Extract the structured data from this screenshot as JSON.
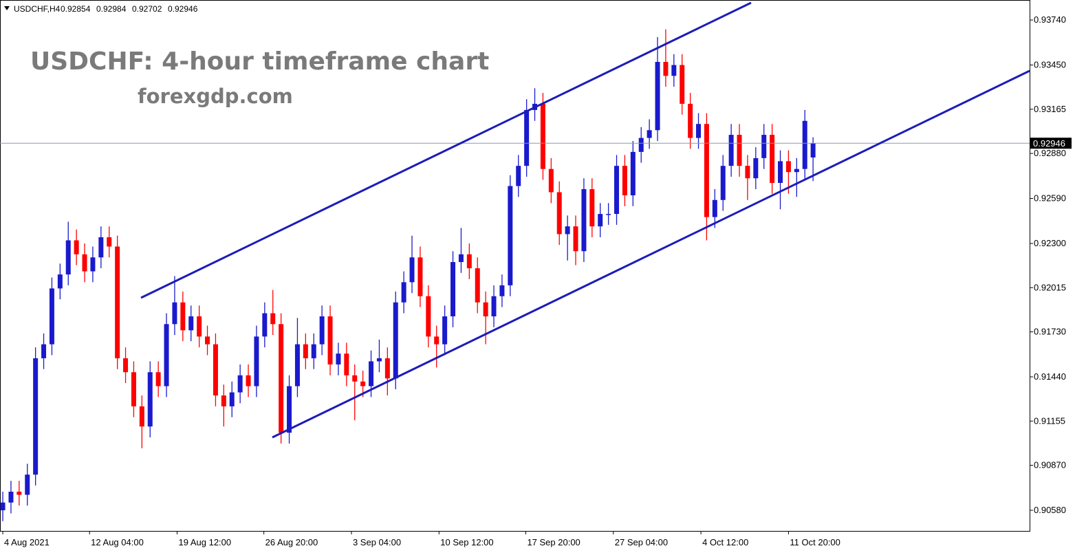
{
  "chart_data": {
    "type": "candlestick",
    "symbol": "USDCHF,H4",
    "title": "USDCHF: 4-hour timeframe chart",
    "subtitle": "forexgdp.com",
    "up_color": "#1a1acd",
    "down_color": "#ff0000",
    "open": [
      0.9058,
      0.9063,
      0.907,
      0.9068,
      0.9081,
      0.9156,
      0.9165,
      0.9201,
      0.921,
      0.9232,
      0.9223,
      0.9212,
      0.9221,
      0.9234,
      0.9228,
      0.9156,
      0.9147,
      0.9125,
      0.9112,
      0.9147,
      0.9138,
      0.9178,
      0.9192,
      0.9174,
      0.9183,
      0.917,
      0.9165,
      0.9132,
      0.9125,
      0.9134,
      0.9145,
      0.9138,
      0.917,
      0.9185,
      0.9178,
      0.9108,
      0.9138,
      0.9165,
      0.9156,
      0.9165,
      0.9183,
      0.9152,
      0.9159,
      0.9145,
      0.9141,
      0.9138,
      0.9154,
      0.9156,
      0.9143,
      0.9192,
      0.9205,
      0.9221,
      0.9196,
      0.917,
      0.9165,
      0.9183,
      0.9218,
      0.9223,
      0.9214,
      0.9192,
      0.9183,
      0.9196,
      0.9203,
      0.9267,
      0.928,
      0.9316,
      0.932,
      0.9278,
      0.9263,
      0.9236,
      0.9241,
      0.9225,
      0.9265,
      0.9241,
      0.9249,
      0.9249,
      0.928,
      0.9261,
      0.9289,
      0.9298,
      0.9303,
      0.9347,
      0.9338,
      0.9345,
      0.932,
      0.9298,
      0.9307,
      0.9247,
      0.9258,
      0.928,
      0.93,
      0.928,
      0.9272,
      0.9285,
      0.93,
      0.9269,
      0.9283,
      0.9276,
      0.9278,
      0.92854
    ],
    "high": [
      0.907,
      0.9077,
      0.9077,
      0.9088,
      0.9163,
      0.9172,
      0.9208,
      0.9217,
      0.9244,
      0.9239,
      0.923,
      0.9228,
      0.9241,
      0.9241,
      0.9235,
      0.9163,
      0.9154,
      0.9132,
      0.9154,
      0.9154,
      0.9185,
      0.9209,
      0.9199,
      0.919,
      0.919,
      0.9177,
      0.9172,
      0.9139,
      0.9141,
      0.9152,
      0.9152,
      0.9177,
      0.9192,
      0.92,
      0.9185,
      0.9145,
      0.9182,
      0.9172,
      0.9172,
      0.919,
      0.919,
      0.9166,
      0.9166,
      0.9152,
      0.9148,
      0.9161,
      0.9168,
      0.9163,
      0.9199,
      0.9212,
      0.9235,
      0.9228,
      0.9203,
      0.9177,
      0.919,
      0.9225,
      0.924,
      0.923,
      0.9221,
      0.9199,
      0.9203,
      0.921,
      0.9274,
      0.9287,
      0.9323,
      0.933,
      0.9327,
      0.9285,
      0.927,
      0.9248,
      0.9248,
      0.9272,
      0.9272,
      0.9256,
      0.9256,
      0.9287,
      0.9287,
      0.9296,
      0.9305,
      0.931,
      0.9363,
      0.9368,
      0.9352,
      0.9352,
      0.9327,
      0.9314,
      0.9314,
      0.9265,
      0.9287,
      0.9307,
      0.9307,
      0.9287,
      0.9292,
      0.9307,
      0.9307,
      0.929,
      0.929,
      0.9285,
      0.9316,
      0.92984
    ],
    "low": [
      0.9051,
      0.9056,
      0.9061,
      0.9061,
      0.9074,
      0.9149,
      0.9158,
      0.9194,
      0.9203,
      0.9216,
      0.9205,
      0.9205,
      0.9214,
      0.9221,
      0.9149,
      0.914,
      0.9118,
      0.9098,
      0.9105,
      0.9131,
      0.9131,
      0.9171,
      0.9167,
      0.9167,
      0.9163,
      0.9158,
      0.9125,
      0.9112,
      0.9118,
      0.9127,
      0.9131,
      0.9131,
      0.9163,
      0.9171,
      0.9101,
      0.9101,
      0.9131,
      0.9149,
      0.9149,
      0.9158,
      0.9145,
      0.9145,
      0.9138,
      0.9116,
      0.9131,
      0.9131,
      0.9147,
      0.9132,
      0.9136,
      0.9185,
      0.9198,
      0.9189,
      0.9163,
      0.915,
      0.9158,
      0.9176,
      0.9211,
      0.9207,
      0.9185,
      0.9165,
      0.9176,
      0.9189,
      0.9196,
      0.926,
      0.9273,
      0.9309,
      0.9271,
      0.9256,
      0.9229,
      0.9219,
      0.9216,
      0.9218,
      0.9234,
      0.9234,
      0.9242,
      0.9242,
      0.9254,
      0.9254,
      0.9282,
      0.9291,
      0.9296,
      0.9331,
      0.9331,
      0.9313,
      0.9291,
      0.9291,
      0.9232,
      0.924,
      0.9251,
      0.9273,
      0.9273,
      0.9258,
      0.9265,
      0.9278,
      0.9262,
      0.9252,
      0.9262,
      0.926,
      0.9271,
      0.92702
    ],
    "close": [
      0.9063,
      0.907,
      0.9068,
      0.9081,
      0.9156,
      0.9165,
      0.9201,
      0.921,
      0.9232,
      0.9223,
      0.9212,
      0.9221,
      0.9234,
      0.9228,
      0.9156,
      0.9147,
      0.9125,
      0.9112,
      0.9147,
      0.9138,
      0.9178,
      0.9192,
      0.9174,
      0.9183,
      0.917,
      0.9165,
      0.9132,
      0.9125,
      0.9134,
      0.9145,
      0.9138,
      0.917,
      0.9185,
      0.9178,
      0.9108,
      0.9138,
      0.9165,
      0.9156,
      0.9165,
      0.9183,
      0.9152,
      0.9159,
      0.9145,
      0.9141,
      0.9138,
      0.9154,
      0.9156,
      0.9143,
      0.9192,
      0.9205,
      0.9221,
      0.9196,
      0.917,
      0.9165,
      0.9183,
      0.9218,
      0.9223,
      0.9214,
      0.9192,
      0.9183,
      0.9196,
      0.9203,
      0.9267,
      0.928,
      0.9316,
      0.932,
      0.9278,
      0.9263,
      0.9236,
      0.9241,
      0.9225,
      0.9265,
      0.9241,
      0.9249,
      0.9249,
      0.928,
      0.9261,
      0.9289,
      0.9298,
      0.9303,
      0.9347,
      0.9338,
      0.9345,
      0.932,
      0.9298,
      0.9307,
      0.9247,
      0.9258,
      0.928,
      0.93,
      0.928,
      0.9272,
      0.9285,
      0.93,
      0.9269,
      0.9283,
      0.9276,
      0.9278,
      0.9309,
      0.92946
    ],
    "xlim": [
      -0.34,
      125.46
    ],
    "xticks": [
      {
        "value": 0,
        "label": "4 Aug 2021"
      },
      {
        "value": 10.6,
        "label": "12 Aug 04:00"
      },
      {
        "value": 21.3,
        "label": "19 Aug 12:00"
      },
      {
        "value": 31.9,
        "label": "26 Aug 20:00"
      },
      {
        "value": 42.6,
        "label": "3 Sep 04:00"
      },
      {
        "value": 53.3,
        "label": "10 Sep 12:00"
      },
      {
        "value": 63.9,
        "label": "17 Sep 20:00"
      },
      {
        "value": 74.6,
        "label": "27 Sep 04:00"
      },
      {
        "value": 85.3,
        "label": "4 Oct 12:00"
      },
      {
        "value": 96,
        "label": "11 Oct 20:00"
      }
    ],
    "ylim": [
      0.90447,
      0.93869
    ],
    "yticks": [
      {
        "value": 0.9374,
        "label": "0.93740"
      },
      {
        "value": 0.9345,
        "label": "0.93450"
      },
      0.93165,
      {
        "value": 0.9288,
        "label": "0.92880"
      },
      {
        "value": 0.9259,
        "label": "0.92590"
      },
      {
        "value": 0.923,
        "label": "0.92300"
      },
      0.92015,
      {
        "value": 0.9173,
        "label": "0.91730"
      },
      {
        "value": 0.9144,
        "label": "0.91440"
      },
      0.91155,
      {
        "value": 0.9087,
        "label": "0.90870"
      },
      {
        "value": 0.9058,
        "label": "0.90580"
      }
    ]
  }
}
